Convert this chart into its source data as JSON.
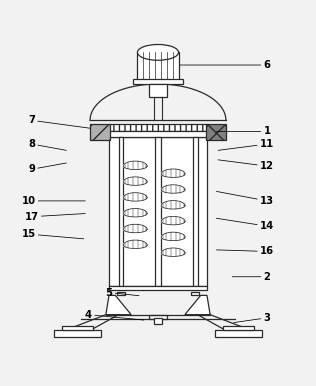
{
  "bg_color": "#f2f2f2",
  "line_color": "#2a2a2a",
  "figsize": [
    3.16,
    3.86
  ],
  "dpi": 100,
  "label_positions": {
    "1": [
      0.845,
      0.695,
      0.685,
      0.695
    ],
    "2": [
      0.845,
      0.235,
      0.735,
      0.235
    ],
    "3": [
      0.845,
      0.105,
      0.74,
      0.09
    ],
    "4": [
      0.28,
      0.115,
      0.455,
      0.098
    ],
    "5": [
      0.345,
      0.185,
      0.44,
      0.175
    ],
    "6": [
      0.845,
      0.905,
      0.57,
      0.905
    ],
    "7": [
      0.1,
      0.73,
      0.285,
      0.705
    ],
    "8": [
      0.1,
      0.655,
      0.21,
      0.635
    ],
    "9": [
      0.1,
      0.575,
      0.21,
      0.595
    ],
    "10": [
      0.09,
      0.475,
      0.27,
      0.475
    ],
    "11": [
      0.845,
      0.655,
      0.69,
      0.635
    ],
    "12": [
      0.845,
      0.585,
      0.69,
      0.605
    ],
    "13": [
      0.845,
      0.475,
      0.685,
      0.505
    ],
    "14": [
      0.845,
      0.395,
      0.685,
      0.42
    ],
    "15": [
      0.09,
      0.37,
      0.265,
      0.355
    ],
    "16": [
      0.845,
      0.315,
      0.685,
      0.32
    ],
    "17": [
      0.1,
      0.425,
      0.27,
      0.435
    ]
  }
}
